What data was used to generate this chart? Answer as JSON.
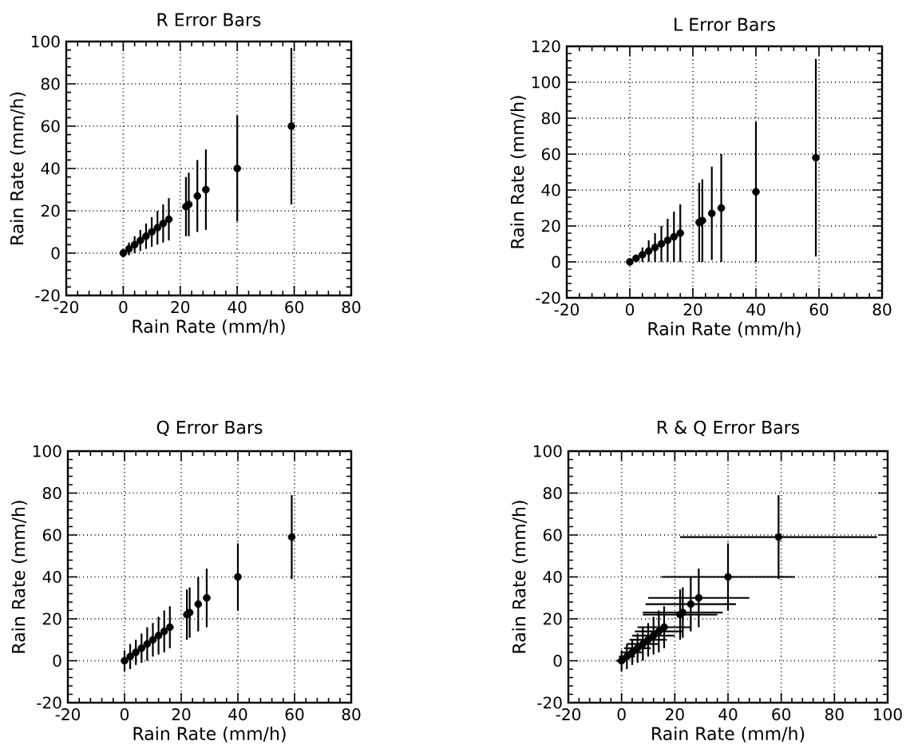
{
  "chart_data": [
    {
      "type": "scatter",
      "title": "R Error Bars",
      "xlabel": "Rain Rate (mm/h)",
      "ylabel": "Rain Rate (mm/h)",
      "xlim": [
        -20,
        80
      ],
      "ylim": [
        -20,
        100
      ],
      "xticks": [
        -20,
        0,
        20,
        40,
        60,
        80
      ],
      "yticks": [
        -20,
        0,
        20,
        40,
        60,
        80,
        100
      ],
      "grid": true,
      "series": [
        {
          "color": "#000000",
          "x": [
            0,
            2,
            4,
            6,
            8,
            10,
            12,
            14,
            16,
            22,
            23,
            26,
            29,
            40,
            59
          ],
          "values": [
            0,
            2,
            4,
            6,
            8,
            10,
            12,
            14,
            16,
            22,
            23,
            27,
            30,
            40,
            60
          ],
          "errors": [
            2,
            3,
            4,
            5,
            6,
            7,
            8,
            9,
            10,
            14,
            15,
            17,
            19,
            25,
            37
          ]
        }
      ]
    },
    {
      "type": "scatter",
      "title": "L Error Bars",
      "xlabel": "Rain Rate (mm/h)",
      "ylabel": "Rain Rate (mm/h)",
      "xlim": [
        -20,
        80
      ],
      "ylim": [
        -20,
        120
      ],
      "xticks": [
        -20,
        0,
        20,
        40,
        60,
        80
      ],
      "yticks": [
        -20,
        0,
        20,
        40,
        60,
        80,
        100,
        120
      ],
      "grid": true,
      "series": [
        {
          "color": "#000000",
          "x": [
            0,
            2,
            4,
            6,
            8,
            10,
            12,
            14,
            16,
            22,
            23,
            26,
            29,
            40,
            59
          ],
          "values": [
            0,
            2,
            4,
            6,
            8,
            10,
            12,
            14,
            16,
            22,
            23,
            27,
            30,
            39,
            58
          ],
          "errors": [
            2,
            2,
            4,
            6,
            8,
            10,
            12,
            14,
            16,
            22,
            23,
            26,
            30,
            39,
            55
          ]
        }
      ]
    },
    {
      "type": "scatter",
      "title": "Q Error Bars",
      "xlabel": "Rain Rate (mm/h)",
      "ylabel": "Rain Rate (mm/h)",
      "xlim": [
        -20,
        80
      ],
      "ylim": [
        -20,
        100
      ],
      "xticks": [
        -20,
        0,
        20,
        40,
        60,
        80
      ],
      "yticks": [
        -20,
        0,
        20,
        40,
        60,
        80,
        100
      ],
      "grid": true,
      "series": [
        {
          "color": "#000000",
          "x": [
            0,
            2,
            4,
            6,
            8,
            10,
            12,
            14,
            16,
            22,
            23,
            26,
            29,
            40,
            59
          ],
          "values": [
            0,
            2,
            4,
            6,
            8,
            10,
            12,
            14,
            16,
            22,
            23,
            27,
            30,
            40,
            59
          ],
          "errors": [
            5,
            6,
            6,
            7,
            8,
            8,
            9,
            10,
            10,
            12,
            12,
            13,
            14,
            16,
            20
          ]
        }
      ]
    },
    {
      "type": "scatter",
      "title": "R & Q Error Bars",
      "xlabel": "Rain Rate (mm/h)",
      "ylabel": "Rain Rate (mm/h)",
      "xlim": [
        -20,
        100
      ],
      "ylim": [
        -20,
        100
      ],
      "xticks": [
        -20,
        0,
        20,
        40,
        60,
        80,
        100
      ],
      "yticks": [
        -20,
        0,
        20,
        40,
        60,
        80,
        100
      ],
      "grid": true,
      "series": [
        {
          "color": "#000000",
          "x": [
            0,
            2,
            4,
            6,
            8,
            10,
            12,
            14,
            16,
            22,
            23,
            26,
            29,
            40,
            59
          ],
          "values": [
            0,
            2,
            4,
            6,
            8,
            10,
            12,
            14,
            16,
            22,
            23,
            27,
            30,
            40,
            59
          ],
          "errors": [
            5,
            6,
            6,
            7,
            8,
            8,
            9,
            10,
            10,
            12,
            12,
            13,
            14,
            16,
            20
          ],
          "xerrors": [
            2,
            3,
            4,
            5,
            6,
            7,
            8,
            9,
            10,
            14,
            15,
            17,
            19,
            25,
            37
          ]
        }
      ]
    }
  ]
}
